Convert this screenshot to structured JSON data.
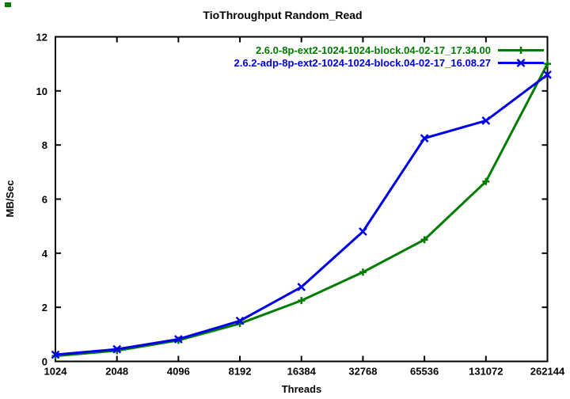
{
  "page": {
    "background": "#ffffff",
    "corner_mark_color": "#007d00"
  },
  "chart_data": {
    "type": "line",
    "title": "TioThroughput Random_Read",
    "xlabel": "Threads",
    "ylabel": "MB/Sec",
    "x_scale": "log2",
    "categories": [
      1024,
      2048,
      4096,
      8192,
      16384,
      32768,
      65536,
      131072,
      262144
    ],
    "ylim": [
      0,
      12
    ],
    "yticks": [
      0,
      2,
      4,
      6,
      8,
      10,
      12
    ],
    "grid": false,
    "legend_position": "top-right-inside",
    "axis_color": "#000000",
    "text_color": "#000000",
    "series": [
      {
        "name": "2.6.0-8p-ext2-1024-1024-block.04-02-17_17.34.00",
        "color": "#007d00",
        "marker": "plus",
        "values": [
          0.2,
          0.4,
          0.78,
          1.4,
          2.25,
          3.3,
          4.5,
          6.65,
          11.0
        ]
      },
      {
        "name": "2.6.2-adp-8p-ext2-1024-1024-block.04-02-17_16.08.27",
        "color": "#0000e6",
        "marker": "cross",
        "values": [
          0.25,
          0.45,
          0.82,
          1.5,
          2.75,
          4.8,
          8.25,
          8.9,
          10.6
        ]
      }
    ]
  }
}
